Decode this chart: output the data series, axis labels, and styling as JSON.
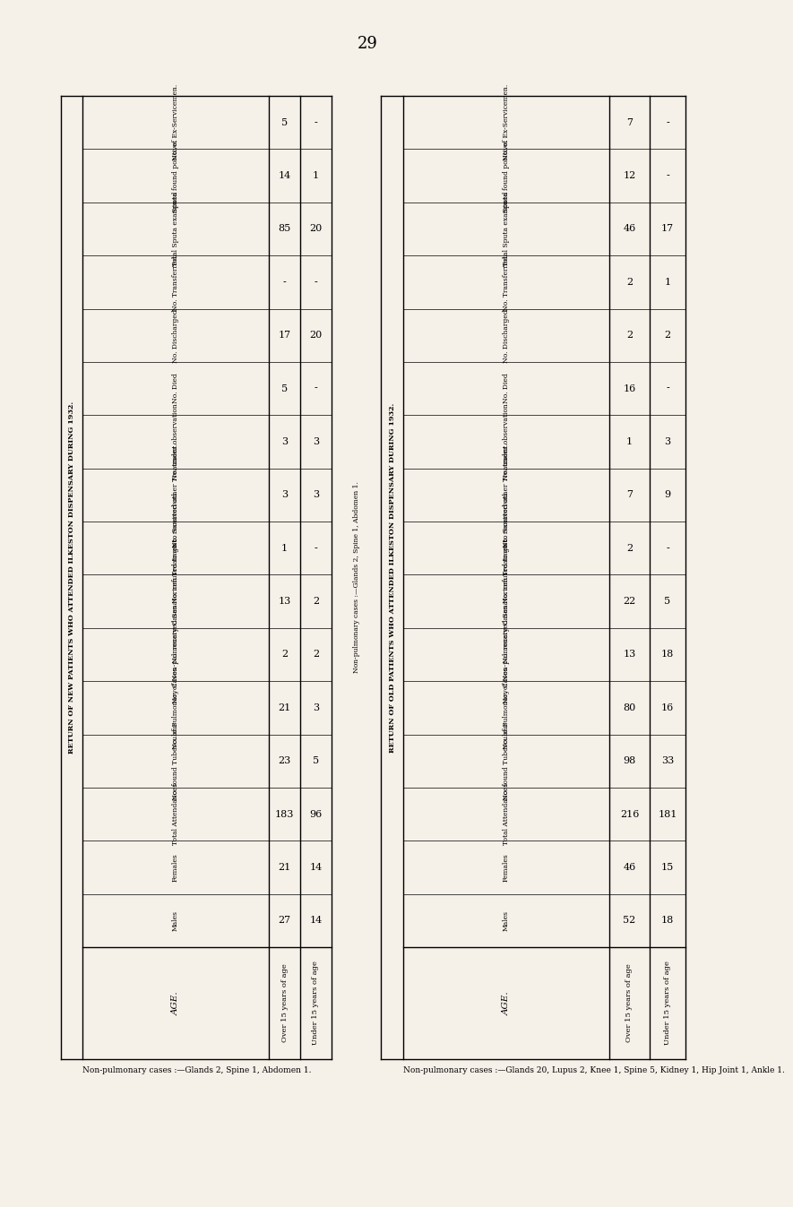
{
  "page_num": "29",
  "bg_color": "#f5f0e8",
  "title_new": "RETURN OF NEW PATIENTS WHO ATTENDED ILKESTON DISPENSARY DURING 1932.",
  "title_old": "RETURN OF OLD PATIENTS WHO ATTENDED ILKESTON DISPENSARY DURING 1932.",
  "row_labels": [
    "No. of Ex-Servicemen.",
    "Sputa found positive.",
    "Total Sputa examined",
    "No. Transferred.",
    "No. Discharged.",
    "No. Died",
    "No. under observation",
    "No. received other Treatment.",
    "No. refused to go to Sanatorium",
    "No. received Sanatorium Treatment",
    "No. of Non-pulmonary Cases",
    "No. of Pulmonary Cases",
    "No. found Tuberculous",
    "Total Attendances",
    "Females",
    "Males"
  ],
  "new_data": [
    [
      "5",
      "-"
    ],
    [
      "14",
      "1"
    ],
    [
      "85",
      "20"
    ],
    [
      "-",
      "-"
    ],
    [
      "17",
      "20"
    ],
    [
      "5",
      "-"
    ],
    [
      "3",
      "3"
    ],
    [
      "3",
      "3"
    ],
    [
      "1",
      "-"
    ],
    [
      "13",
      "2"
    ],
    [
      "2",
      "2"
    ],
    [
      "21",
      "3"
    ],
    [
      "23",
      "5"
    ],
    [
      "183",
      "96"
    ],
    [
      "21",
      "14"
    ],
    [
      "27",
      "14"
    ]
  ],
  "old_data": [
    [
      "7",
      "-"
    ],
    [
      "12",
      "-"
    ],
    [
      "46",
      "17"
    ],
    [
      "2",
      "1"
    ],
    [
      "2",
      "2"
    ],
    [
      "16",
      "-"
    ],
    [
      "1",
      "3"
    ],
    [
      "7",
      "9"
    ],
    [
      "2",
      "-"
    ],
    [
      "22",
      "5"
    ],
    [
      "13",
      "18"
    ],
    [
      "80",
      "16"
    ],
    [
      "98",
      "33"
    ],
    [
      "216",
      "181"
    ],
    [
      "46",
      "15"
    ],
    [
      "52",
      "18"
    ]
  ],
  "footnote_new": "Non-pulmonary cases :—Glands 2, Spine 1, Abdomen 1.",
  "footnote_old": "Non-pulmonary cases :—Glands 20, Lupus 2, Knee 1, Spine 5, Kidney 1, Hip Joint 1, Ankle 1."
}
